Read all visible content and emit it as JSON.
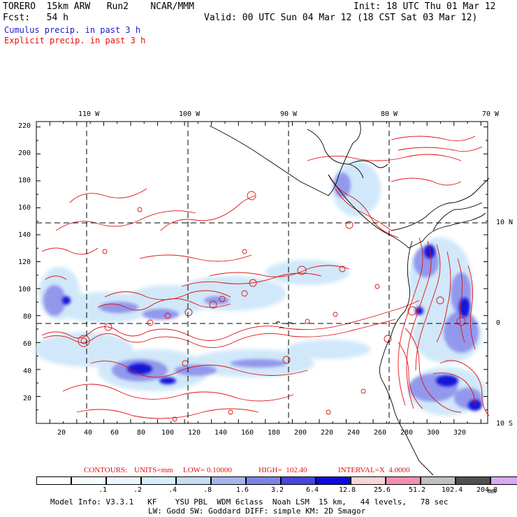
{
  "header": {
    "line1_left": "TORERO  15km ARW   Run2    NCAR/MMM",
    "line1_right": "Init: 18 UTC Thu 01 Mar 12",
    "line2_left": "Fcst:   54 h",
    "line2_right": "Valid: 00 UTC Sun 04 Mar 12 (18 CST Sat 03 Mar 12)",
    "line3": "Cumulus precip. in past 3 h",
    "line4": "Explicit precip. in past 3 h"
  },
  "map": {
    "lon_labels": [
      "110 W",
      "100 W",
      "90 W",
      "80 W",
      "70 W"
    ],
    "lat_labels_right": [
      "10 N",
      "0",
      "10 S"
    ],
    "y_ticks": [
      "220",
      "200",
      "180",
      "160",
      "140",
      "120",
      "100",
      "80",
      "60",
      "40",
      "20"
    ],
    "x_ticks": [
      "20",
      "40",
      "60",
      "80",
      "100",
      "120",
      "140",
      "160",
      "180",
      "200",
      "220",
      "240",
      "260",
      "280",
      "300",
      "320"
    ]
  },
  "contours_line": {
    "prefix": "CONTOURS:",
    "units": "UNITS=mm",
    "low": "LOW= 0.10000",
    "high": "HIGH=  102.40",
    "interval": "INTERVAL=X  4.0000"
  },
  "legend": {
    "unit": "mm",
    "labels": [
      ".1",
      ".2",
      ".4",
      ".8",
      "1.6",
      "3.2",
      "6.4",
      "12.8",
      "25.6",
      "51.2",
      "102.4",
      "204.8"
    ],
    "colors": [
      "#ffffff",
      "#f5fcff",
      "#e8f6ff",
      "#d6eefb",
      "#c4dcf4",
      "#a8b4ee",
      "#7e82e6",
      "#4646e0",
      "#0a0ae0",
      "#f8d4d4",
      "#f090b0",
      "#c0c0c0",
      "#505050",
      "#d8a8f0"
    ]
  },
  "footer": {
    "line1": "Model Info: V3.3.1   KF    YSU PBL  WDM 6class  Noah LSM  15 km,   44 levels,   78 sec",
    "line2": "LW: Godd SW: Goddard DIFF: simple KM: 2D Smagor"
  }
}
